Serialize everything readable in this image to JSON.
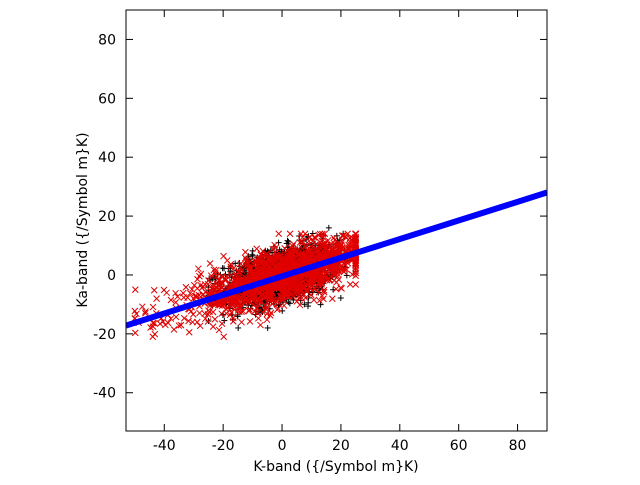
{
  "chart_data": {
    "type": "scatter",
    "title": "",
    "xlabel": "K-band ({/Symbol m}K)",
    "ylabel": "Ka-band ({/Symbol m}K)",
    "xlim": [
      -53,
      90
    ],
    "ylim": [
      -53,
      90
    ],
    "x_ticks": [
      -40,
      -20,
      0,
      20,
      40,
      60,
      80
    ],
    "y_ticks": [
      -40,
      -20,
      0,
      20,
      40,
      60,
      80
    ],
    "grid": false,
    "legend": null,
    "series": [
      {
        "marker": "plus",
        "color": "#000000",
        "distribution": {
          "x_range": [
            -25,
            25
          ],
          "y_range": [
            -18,
            16
          ],
          "approx_count": 1500,
          "center": [
            0,
            0
          ],
          "slope": 0.25
        }
      },
      {
        "marker": "x",
        "color": "#e00000",
        "distribution": {
          "x_range": [
            -50,
            25
          ],
          "y_range": [
            -21,
            14
          ],
          "approx_count": 1500,
          "center": [
            0,
            0
          ],
          "slope": 0.32
        }
      },
      {
        "marker": "line",
        "color": "#0000ff",
        "x": [
          -53,
          90
        ],
        "y": [
          -17.2,
          28.0
        ]
      }
    ]
  }
}
